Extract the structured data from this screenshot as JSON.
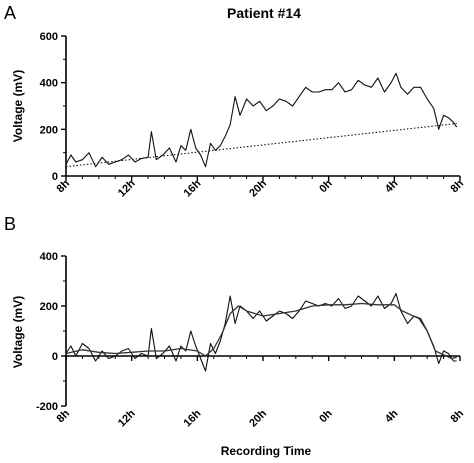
{
  "chart_data": [
    {
      "panel_label": "A",
      "type": "line",
      "title": "Patient  #14",
      "xlabel": "",
      "ylabel": "Voltage (mV)",
      "ylim": [
        0,
        600
      ],
      "yticks": [
        0,
        200,
        400,
        600
      ],
      "xlim": [
        8,
        32
      ],
      "xticks": [
        {
          "value": 8,
          "label": "8h"
        },
        {
          "value": 12,
          "label": "12h"
        },
        {
          "value": 16,
          "label": "16h"
        },
        {
          "value": 20,
          "label": "20h"
        },
        {
          "value": 24,
          "label": "0h"
        },
        {
          "value": 28,
          "label": "4h"
        },
        {
          "value": 32,
          "label": "8h"
        }
      ],
      "series": [
        {
          "style": "solid",
          "x": [
            8.0,
            8.3,
            8.6,
            9.0,
            9.4,
            9.8,
            10.2,
            10.6,
            11.0,
            11.4,
            11.8,
            12.2,
            12.6,
            13.0,
            13.2,
            13.5,
            13.9,
            14.3,
            14.7,
            15.0,
            15.3,
            15.6,
            15.9,
            16.2,
            16.5,
            16.8,
            17.1,
            17.4,
            17.7,
            18.0,
            18.3,
            18.6,
            19.0,
            19.4,
            19.8,
            20.2,
            20.6,
            21.0,
            21.4,
            21.8,
            22.2,
            22.6,
            23.0,
            23.4,
            23.8,
            24.2,
            24.6,
            25.0,
            25.4,
            25.8,
            26.2,
            26.6,
            27.0,
            27.4,
            27.8,
            28.1,
            28.4,
            28.8,
            29.2,
            29.6,
            30.0,
            30.4,
            30.7,
            31.0,
            31.3,
            31.6,
            31.8
          ],
          "y": [
            50,
            90,
            60,
            70,
            100,
            40,
            80,
            50,
            60,
            70,
            90,
            60,
            75,
            80,
            190,
            70,
            90,
            120,
            60,
            130,
            110,
            200,
            120,
            90,
            40,
            140,
            110,
            130,
            170,
            220,
            340,
            260,
            330,
            300,
            320,
            280,
            300,
            330,
            320,
            300,
            340,
            380,
            360,
            360,
            370,
            370,
            400,
            360,
            370,
            410,
            390,
            380,
            420,
            360,
            400,
            440,
            380,
            350,
            380,
            380,
            330,
            290,
            200,
            260,
            250,
            230,
            210
          ]
        },
        {
          "style": "dotted",
          "x": [
            8,
            31.8
          ],
          "y": [
            40,
            225
          ]
        }
      ]
    },
    {
      "panel_label": "B",
      "type": "line",
      "title": "",
      "xlabel": "Recording Time",
      "ylabel": "Voltage (mV)",
      "ylim": [
        -200,
        400
      ],
      "yticks": [
        -200,
        0,
        200,
        400
      ],
      "xlim": [
        8,
        32
      ],
      "xticks": [
        {
          "value": 8,
          "label": "8h"
        },
        {
          "value": 12,
          "label": "12h"
        },
        {
          "value": 16,
          "label": "16h"
        },
        {
          "value": 20,
          "label": "20h"
        },
        {
          "value": 24,
          "label": "0h"
        },
        {
          "value": 28,
          "label": "4h"
        },
        {
          "value": 32,
          "label": "8h"
        }
      ],
      "series": [
        {
          "style": "solid",
          "x": [
            8.0,
            8.3,
            8.6,
            9.0,
            9.4,
            9.8,
            10.2,
            10.6,
            11.0,
            11.4,
            11.8,
            12.2,
            12.6,
            13.0,
            13.2,
            13.5,
            13.9,
            14.3,
            14.7,
            15.0,
            15.3,
            15.6,
            15.9,
            16.2,
            16.5,
            16.8,
            17.1,
            17.4,
            17.7,
            18.0,
            18.3,
            18.6,
            19.0,
            19.4,
            19.8,
            20.2,
            20.6,
            21.0,
            21.4,
            21.8,
            22.2,
            22.6,
            23.0,
            23.4,
            23.8,
            24.2,
            24.6,
            25.0,
            25.4,
            25.8,
            26.2,
            26.6,
            27.0,
            27.4,
            27.8,
            28.1,
            28.4,
            28.8,
            29.2,
            29.6,
            30.0,
            30.4,
            30.7,
            31.0,
            31.3,
            31.6,
            31.8
          ],
          "y": [
            10,
            40,
            0,
            50,
            30,
            -20,
            20,
            -10,
            0,
            20,
            30,
            -10,
            10,
            0,
            110,
            -10,
            10,
            40,
            -20,
            40,
            20,
            100,
            40,
            -10,
            -60,
            50,
            10,
            60,
            130,
            240,
            130,
            200,
            180,
            150,
            180,
            140,
            160,
            180,
            170,
            150,
            180,
            220,
            210,
            200,
            210,
            200,
            230,
            190,
            200,
            240,
            220,
            200,
            240,
            190,
            210,
            250,
            180,
            130,
            160,
            150,
            100,
            40,
            -30,
            20,
            10,
            -20,
            -20
          ]
        },
        {
          "style": "smooth",
          "x": [
            8,
            9,
            10,
            11,
            12,
            13,
            14,
            15,
            16,
            16.5,
            17,
            17.5,
            18,
            18.5,
            19,
            20,
            21,
            22,
            23,
            24,
            25,
            26,
            27,
            28,
            28.5,
            29,
            29.5,
            30,
            30.5,
            31,
            31.5,
            31.8
          ],
          "y": [
            10,
            25,
            15,
            10,
            15,
            20,
            20,
            30,
            20,
            0,
            30,
            90,
            170,
            200,
            180,
            160,
            170,
            180,
            200,
            205,
            205,
            210,
            205,
            205,
            180,
            165,
            150,
            100,
            20,
            5,
            -10,
            -5
          ]
        }
      ]
    }
  ]
}
